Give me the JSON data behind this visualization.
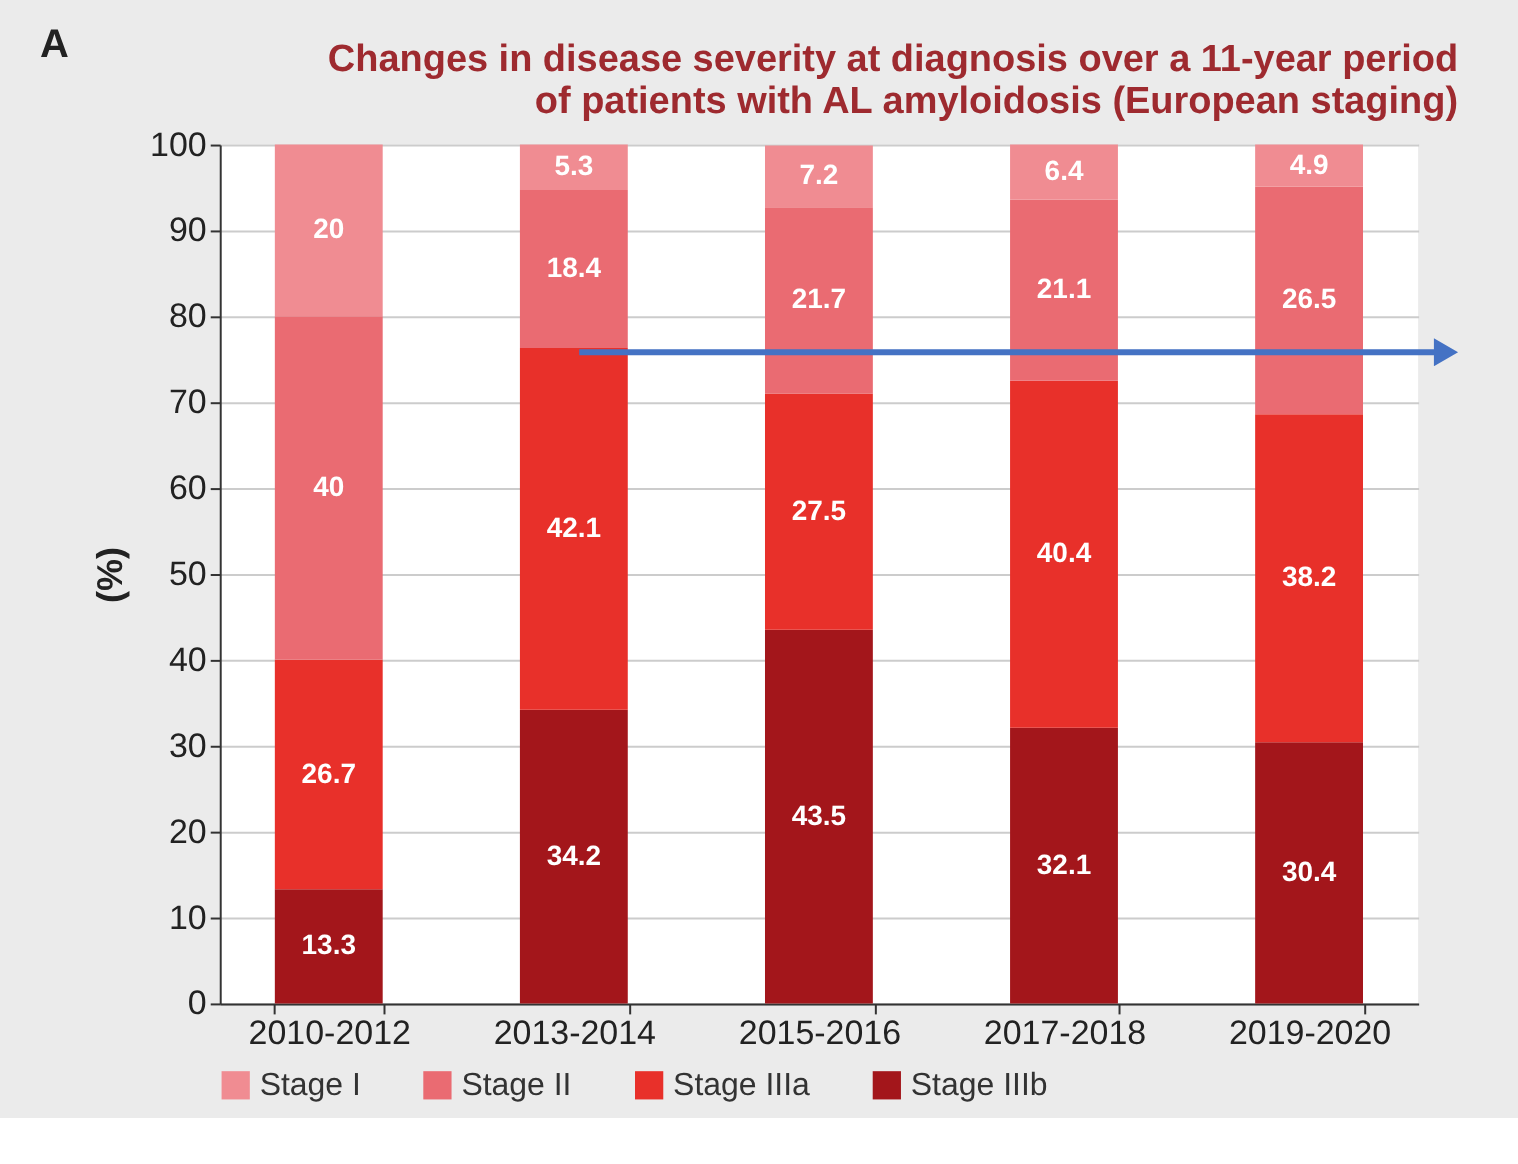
{
  "chart_data": {
    "type": "bar",
    "stacked": true,
    "title": "Changes in disease severity at diagnosis over a 11-year period\nof patients with AL amyloidosis (European staging)",
    "ylabel": "(%)",
    "annotations": [
      "A"
    ],
    "categories": [
      "2010-2012",
      "2013-2014",
      "2015-2016",
      "2017-2018",
      "2019-2020"
    ],
    "series": [
      {
        "name": "Stage IIIb",
        "color": "#a3161b",
        "values": [
          13.3,
          34.2,
          43.5,
          32.1,
          30.4
        ]
      },
      {
        "name": "Stage IIIa",
        "color": "#e8302a",
        "values": [
          26.7,
          42.1,
          27.5,
          40.4,
          38.2
        ]
      },
      {
        "name": "Stage II",
        "color": "#ea6b72",
        "values": [
          40,
          18.4,
          21.7,
          21.1,
          26.5
        ]
      },
      {
        "name": "Stage I",
        "color": "#f08c92",
        "values": [
          20,
          5.3,
          7.2,
          6.4,
          4.9
        ]
      }
    ],
    "ylim": [
      0,
      100
    ],
    "yticks": [
      0,
      10,
      20,
      30,
      40,
      50,
      60,
      70,
      80,
      90,
      100
    ],
    "grid": "y",
    "legend": "bottom",
    "data_labels": true
  }
}
